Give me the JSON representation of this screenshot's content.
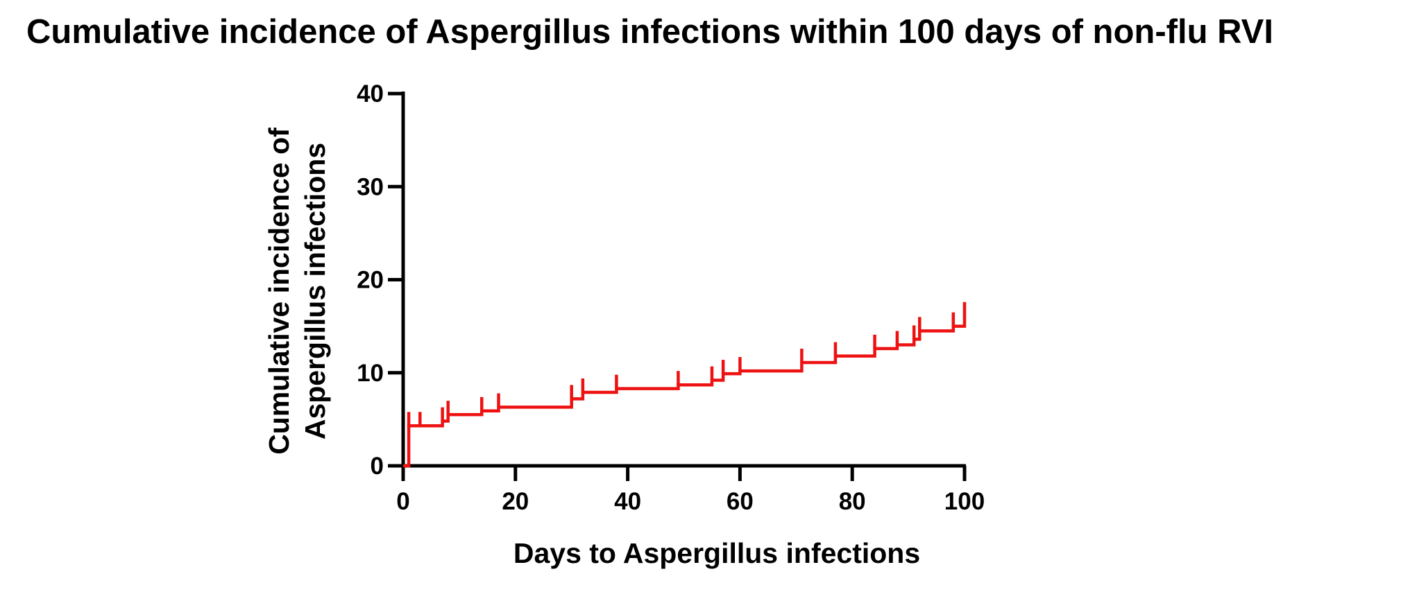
{
  "chart_data": {
    "type": "line",
    "title": "Cumulative incidence of Aspergillus infections within 100 days of non-flu RVI",
    "xlabel": "Days to Aspergillus infections",
    "ylabel_lines": [
      "Cumulative incidence of",
      "Aspergillus infections"
    ],
    "xlim": [
      0,
      100
    ],
    "ylim": [
      0,
      40
    ],
    "xticks": [
      0,
      20,
      40,
      60,
      80,
      100
    ],
    "yticks": [
      0,
      10,
      20,
      30,
      40
    ],
    "grid": false,
    "step": true,
    "series": [
      {
        "color": "#ee1111",
        "x": [
          0,
          1,
          7,
          8,
          14,
          17,
          30,
          32,
          38,
          49,
          55,
          57,
          60,
          71,
          77,
          84,
          88,
          91,
          92,
          98,
          100
        ],
        "y": [
          0,
          4.3,
          4.8,
          5.5,
          5.9,
          6.3,
          7.2,
          7.9,
          8.3,
          8.7,
          9.2,
          9.9,
          10.2,
          11.1,
          11.8,
          12.6,
          13.0,
          13.6,
          14.5,
          15.0,
          17.6
        ]
      }
    ],
    "censor_ticks_x": [
      1,
      3,
      7,
      8,
      14,
      17,
      30,
      32,
      38,
      49,
      55,
      57,
      60,
      71,
      77,
      84,
      88,
      91,
      92,
      98
    ]
  }
}
